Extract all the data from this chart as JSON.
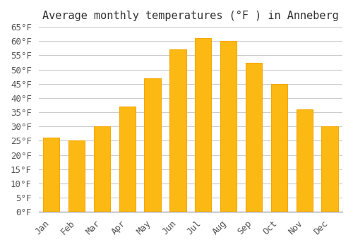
{
  "title": "Average monthly temperatures (°F ) in Anneberg",
  "months": [
    "Jan",
    "Feb",
    "Mar",
    "Apr",
    "May",
    "Jun",
    "Jul",
    "Aug",
    "Sep",
    "Oct",
    "Nov",
    "Dec"
  ],
  "values": [
    26,
    25,
    30,
    37,
    47,
    57,
    61,
    60,
    52.5,
    45,
    36,
    30
  ],
  "bar_color": "#FDB913",
  "bar_edge_color": "#F5A700",
  "background_color": "#FFFFFF",
  "grid_color": "#CCCCCC",
  "ylim": [
    0,
    65
  ],
  "yticks": [
    0,
    5,
    10,
    15,
    20,
    25,
    30,
    35,
    40,
    45,
    50,
    55,
    60,
    65
  ],
  "tick_label_suffix": "°F",
  "title_fontsize": 11,
  "tick_fontsize": 9,
  "font_family": "monospace"
}
